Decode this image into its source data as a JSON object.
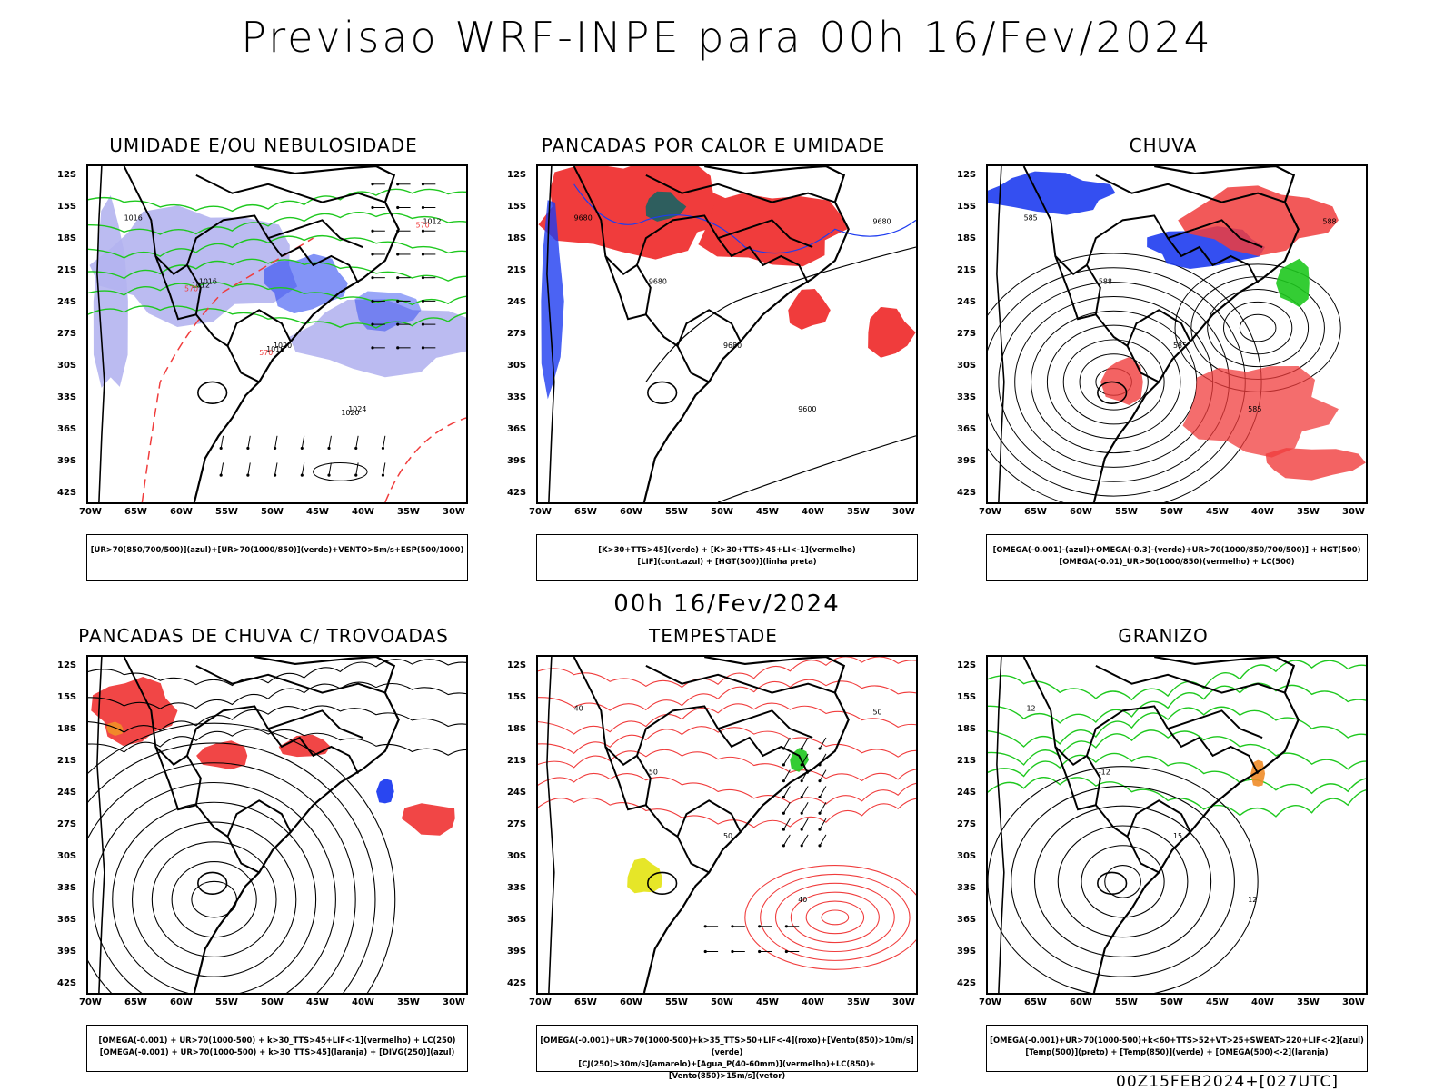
{
  "main_title": "Previsao WRF-INPE  para 00h 16/Fev/2024",
  "mid_title": "00h 16/Fev/2024",
  "footer": "00Z15FEB2024+[027UTC]",
  "lat_labels": [
    "12S",
    "15S",
    "18S",
    "21S",
    "24S",
    "27S",
    "30S",
    "33S",
    "36S",
    "39S",
    "42S"
  ],
  "lon_labels": [
    "70W",
    "65W",
    "60W",
    "55W",
    "50W",
    "45W",
    "40W",
    "35W",
    "30W"
  ],
  "colors": {
    "red": "#f03c3c",
    "green": "#1ec81e",
    "blue": "#1e3cf0",
    "lavender": "#b4b4f0",
    "yellow": "#e6e628",
    "orange": "#f08c28"
  },
  "panels": [
    {
      "title": "UMIDADE E/OU NEBULOSIDADE",
      "legend": [
        "[UR>70(850/700/500)](azul)+[UR>70(1000/850)](verde)+VENTO>5m/s+ESP(500/1000)"
      ],
      "contour_labels": [
        "1016",
        "1016",
        "1020",
        "1024",
        "1012",
        "1012",
        "1016",
        "1020",
        "570",
        "570",
        "570"
      ]
    },
    {
      "title": "PANCADAS POR CALOR E UMIDADE",
      "legend": [
        "[K>30+TTS>45](verde) + [K>30+TTS>45+LI<-1](vermelho)",
        "[LIF](cont.azul) + [HGT(300)](linha preta)"
      ],
      "contour_labels": [
        "9680",
        "9680",
        "9680",
        "9600",
        "9680"
      ]
    },
    {
      "title": "CHUVA",
      "legend": [
        "[OMEGA(-0.001)-(azul)+OMEGA(-0.3)-(verde)+UR>70(1000/850/700/500)] + HGT(500)",
        "[OMEGA(-0.01)_UR>50(1000/850)(vermelho) + LC(500)"
      ],
      "contour_labels": [
        "585",
        "588",
        "585",
        "585",
        "588"
      ]
    },
    {
      "title": "PANCADAS DE CHUVA C/ TROVOADAS",
      "legend": [
        "[OMEGA(-0.001) + UR>70(1000-500) + k>30_TTS>45+LIF<-1](vermelho) + LC(250)",
        "[OMEGA(-0.001) + UR>70(1000-500) + k>30_TTS>45](laranja) + [DIVG(250)](azul)"
      ],
      "contour_labels": []
    },
    {
      "title": "TEMPESTADE",
      "legend": [
        "[OMEGA(-0.001)+UR>70(1000-500)+k>35_TTS>50+LIF<-4](roxo)+[Vento(850)>10m/s](verde)",
        "[CJ(250)>30m/s](amarelo)+[Agua_P(40-60mm)](vermelho)+LC(850)+[Vento(850)>15m/s](vetor)"
      ],
      "contour_labels": [
        "40",
        "50",
        "50",
        "40",
        "50"
      ]
    },
    {
      "title": "GRANIZO",
      "legend": [
        "[OMEGA(-0.001)+UR>70(1000-500)+k<60+TTS>52+VT>25+SWEAT>220+LIF<-2](azul)",
        "[Temp(500)](preto) + [Temp(850)](verde) + [OMEGA(500)<-2](laranja)"
      ],
      "contour_labels": [
        "-12",
        "-12",
        "15",
        "12"
      ]
    }
  ]
}
